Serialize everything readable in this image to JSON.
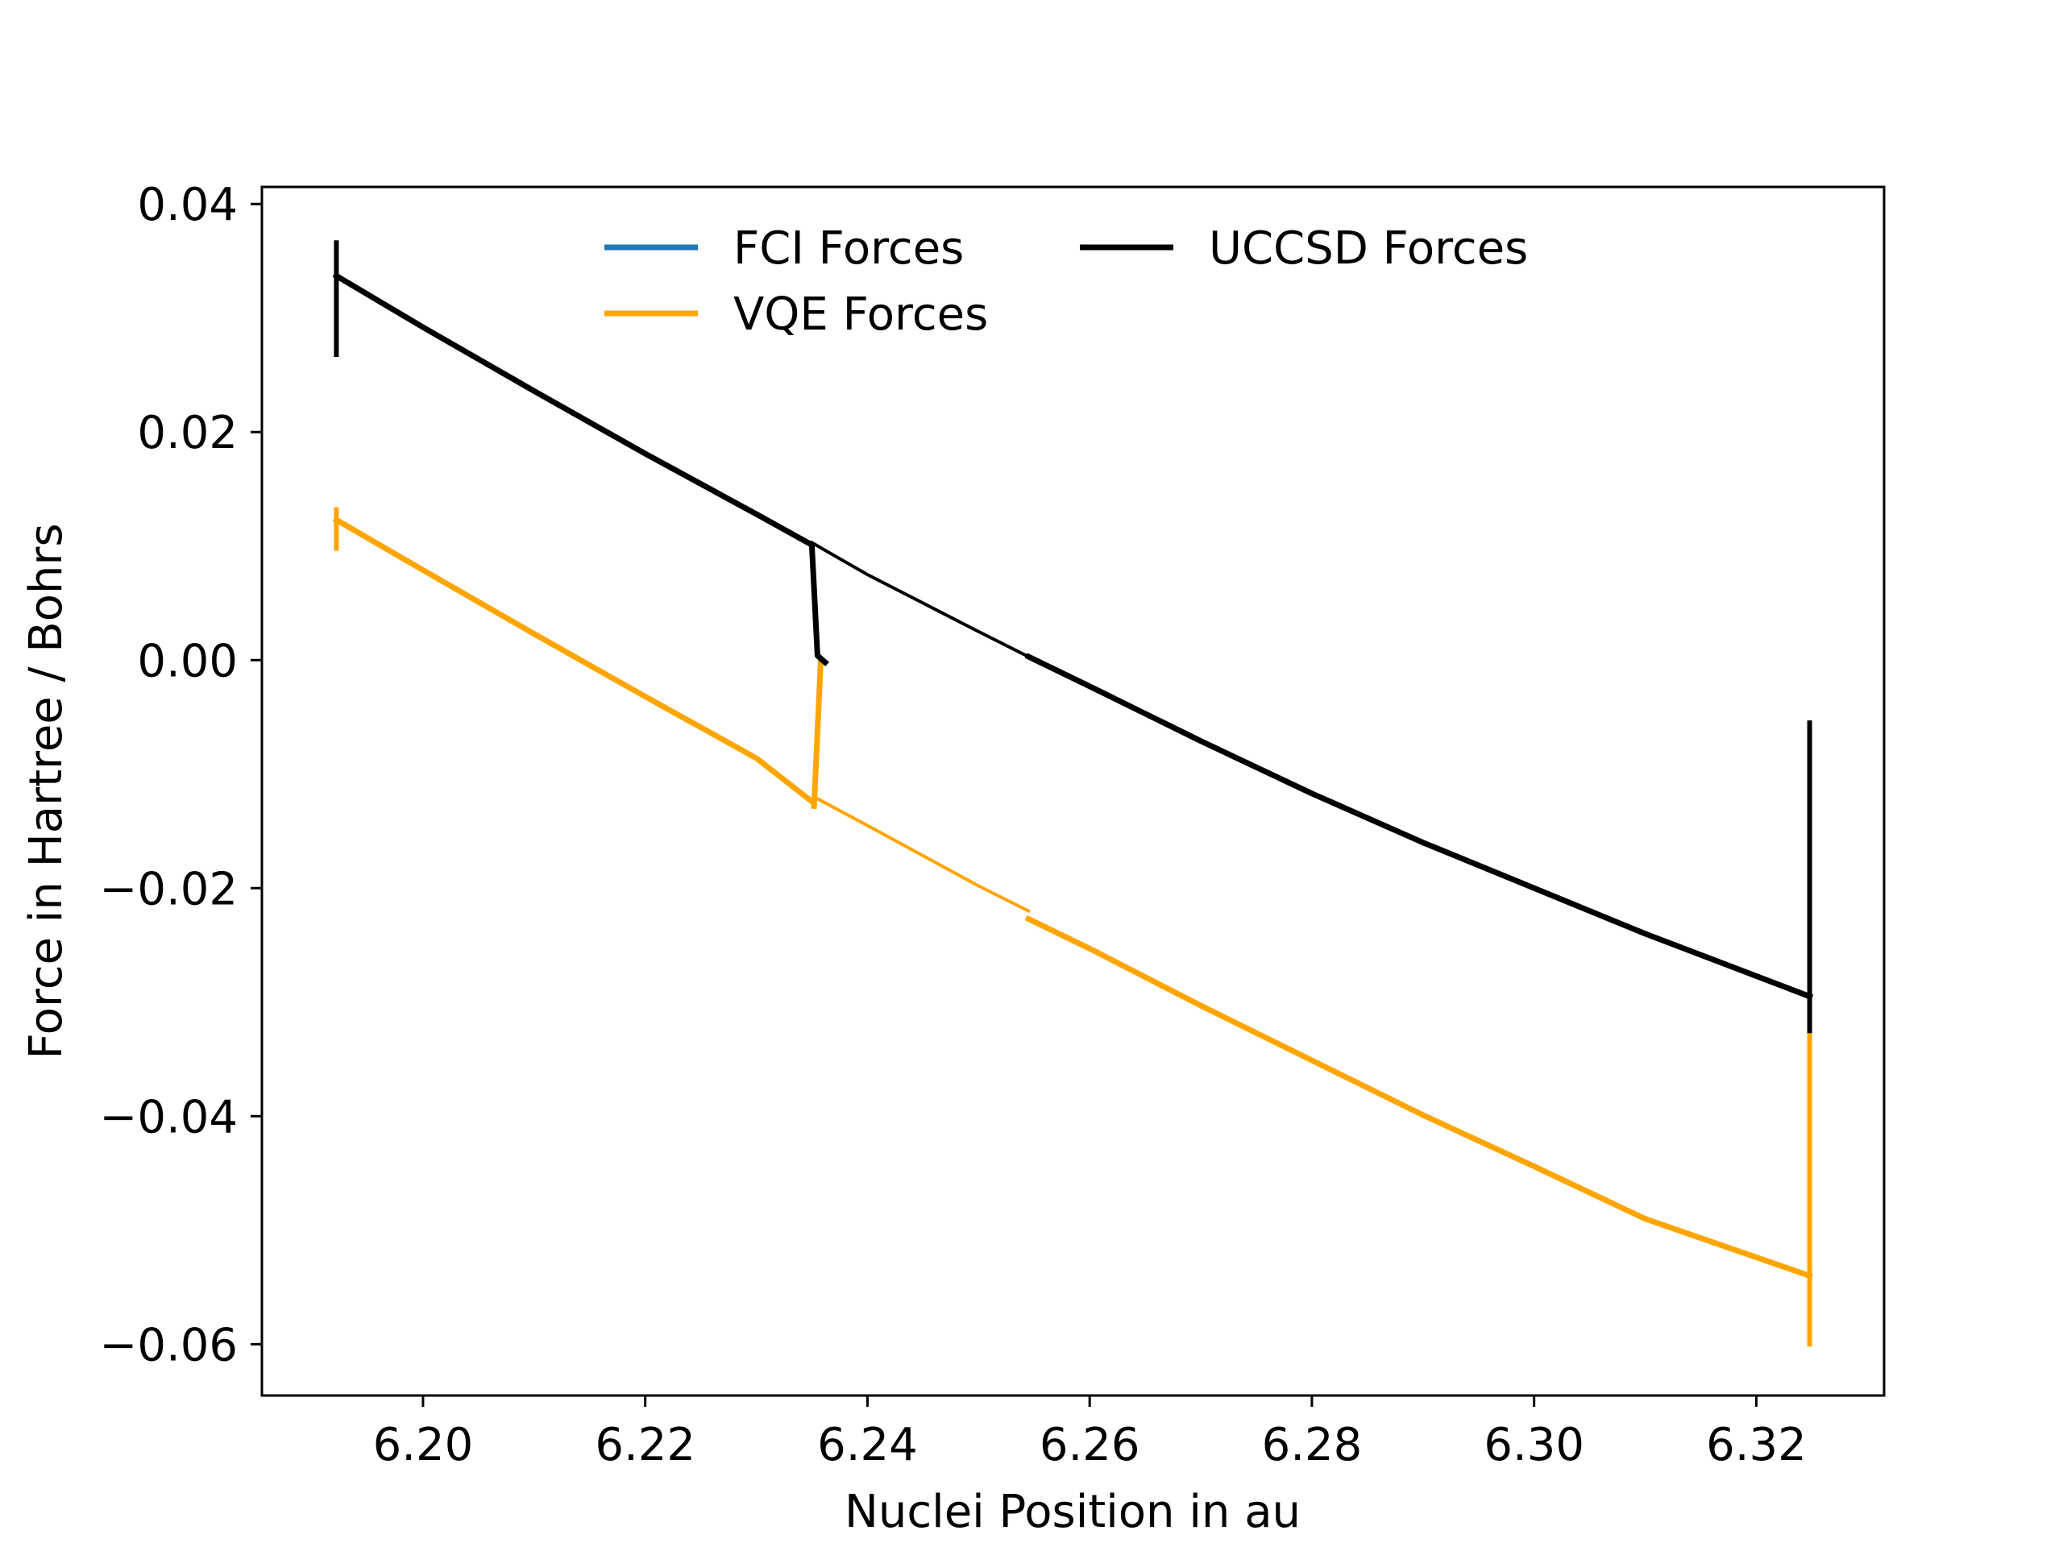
{
  "chart_data": {
    "type": "line",
    "title": "",
    "xlabel": "Nuclei Position in au",
    "ylabel": "Force in Hartree / Bohrs",
    "xlim": [
      6.1855,
      6.3315
    ],
    "ylim": [
      -0.0645,
      0.0415
    ],
    "grid": false,
    "legend_position": "top-center",
    "xticks": [
      {
        "value": 6.2,
        "label": "6.20"
      },
      {
        "value": 6.22,
        "label": "6.22"
      },
      {
        "value": 6.24,
        "label": "6.24"
      },
      {
        "value": 6.26,
        "label": "6.26"
      },
      {
        "value": 6.28,
        "label": "6.28"
      },
      {
        "value": 6.3,
        "label": "6.30"
      },
      {
        "value": 6.32,
        "label": "6.32"
      }
    ],
    "yticks": [
      {
        "value": 0.04,
        "label": "0.04"
      },
      {
        "value": 0.02,
        "label": "0.02"
      },
      {
        "value": 0.0,
        "label": "0.00"
      },
      {
        "value": -0.02,
        "label": "−0.02"
      },
      {
        "value": -0.04,
        "label": "−0.04"
      },
      {
        "value": -0.06,
        "label": "−0.06"
      }
    ],
    "series": [
      {
        "name": "FCI Forces",
        "color": "#1f77b4",
        "segments": []
      },
      {
        "name": "VQE Forces",
        "color": "#ffa500",
        "segments": [
          {
            "weight": "spike",
            "x": [
              6.1922,
              6.1922
            ],
            "y": [
              0.0098,
              0.0132
            ]
          },
          {
            "weight": "thick",
            "x": [
              6.1922,
              6.2,
              6.21,
              6.22,
              6.23,
              6.235
            ],
            "y": [
              0.0123,
              0.0079,
              0.0023,
              -0.0032,
              -0.0086,
              -0.0124
            ]
          },
          {
            "weight": "thick",
            "x": [
              6.2352,
              6.2358
            ],
            "y": [
              -0.0128,
              0.0
            ]
          },
          {
            "weight": "thin",
            "x": [
              6.2352,
              6.24,
              6.25,
              6.2545
            ],
            "y": [
              -0.012,
              -0.0145,
              -0.0198,
              -0.022
            ]
          },
          {
            "weight": "thick",
            "x": [
              6.2545,
              6.26,
              6.27,
              6.28,
              6.29,
              6.3,
              6.31,
              6.3248
            ],
            "y": [
              -0.0227,
              -0.0253,
              -0.0303,
              -0.0351,
              -0.0399,
              -0.0444,
              -0.049,
              -0.054
            ]
          },
          {
            "weight": "spike",
            "x": [
              6.3248,
              6.3248
            ],
            "y": [
              -0.06,
              -0.0325
            ]
          }
        ]
      },
      {
        "name": "UCCSD Forces",
        "color": "#000000",
        "segments": [
          {
            "weight": "spike",
            "x": [
              6.1922,
              6.1922
            ],
            "y": [
              0.0268,
              0.0366
            ]
          },
          {
            "weight": "thick",
            "x": [
              6.1922,
              6.2,
              6.21,
              6.22,
              6.23,
              6.235
            ],
            "y": [
              0.0337,
              0.0292,
              0.0236,
              0.0181,
              0.0128,
              0.0101
            ]
          },
          {
            "weight": "thick",
            "x": [
              6.235,
              6.2355,
              6.2362
            ],
            "y": [
              0.01,
              0.0004,
              -0.0002
            ]
          },
          {
            "weight": "thin",
            "x": [
              6.235,
              6.24,
              6.25,
              6.2545
            ],
            "y": [
              0.0103,
              0.0075,
              0.0025,
              0.0003
            ]
          },
          {
            "weight": "thick",
            "x": [
              6.2545,
              6.26,
              6.27,
              6.28,
              6.29,
              6.3,
              6.31,
              6.3248
            ],
            "y": [
              0.0003,
              -0.0023,
              -0.0071,
              -0.0117,
              -0.016,
              -0.02,
              -0.024,
              -0.0295
            ]
          },
          {
            "weight": "spike",
            "x": [
              6.3248,
              6.3248
            ],
            "y": [
              -0.0325,
              -0.0055
            ]
          }
        ]
      }
    ]
  }
}
